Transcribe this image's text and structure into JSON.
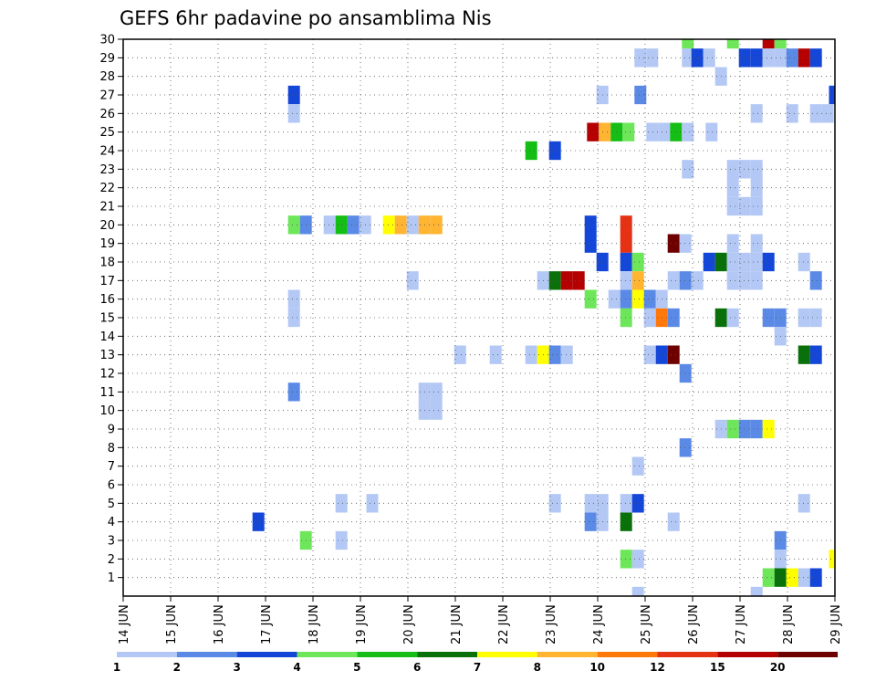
{
  "chart_data": {
    "type": "heatmap",
    "title": "GEFS 6hr padavine po ansamblima Nis",
    "xlabel": "",
    "ylabel": "",
    "x_ticks": [
      "14 JUN",
      "15 JUN",
      "16 JUN",
      "17 JUN",
      "18 JUN",
      "19 JUN",
      "20 JUN",
      "21 JUN",
      "22 JUN",
      "23 JUN",
      "24 JUN",
      "25 JUN",
      "26 JUN",
      "27 JUN",
      "28 JUN",
      "29 JUN"
    ],
    "y_ticks": [
      1,
      2,
      3,
      4,
      5,
      6,
      7,
      8,
      9,
      10,
      11,
      12,
      13,
      14,
      15,
      16,
      17,
      18,
      19,
      20,
      21,
      22,
      23,
      24,
      25,
      26,
      27,
      28,
      29,
      30
    ],
    "xlim_days": [
      14,
      29
    ],
    "ylim_members": [
      0,
      30
    ],
    "time_step_hours": 6,
    "grid": "dotted",
    "legend": {
      "placement": "bottom",
      "labels": [
        "1",
        "2",
        "3",
        "4",
        "5",
        "6",
        "7",
        "8",
        "10",
        "12",
        "15",
        "20"
      ],
      "colors": [
        "#b4c8f5",
        "#5a8ae6",
        "#1446d7",
        "#6ee65a",
        "#14be14",
        "#0a700a",
        "#ffff00",
        "#ffb432",
        "#ff780a",
        "#e63214",
        "#b40000",
        "#6e0000"
      ]
    },
    "cells": [
      {
        "m": 30,
        "d": 25.9,
        "c": 4
      },
      {
        "m": 30,
        "d": 26.85,
        "c": 4
      },
      {
        "m": 30,
        "d": 27.6,
        "c": 11
      },
      {
        "m": 30,
        "d": 27.85,
        "c": 4
      },
      {
        "m": 29,
        "d": 24.9,
        "c": 1
      },
      {
        "m": 29,
        "d": 25.15,
        "c": 1
      },
      {
        "m": 29,
        "d": 25.9,
        "c": 1
      },
      {
        "m": 29,
        "d": 26.1,
        "c": 3
      },
      {
        "m": 29,
        "d": 26.35,
        "c": 1
      },
      {
        "m": 29,
        "d": 27.1,
        "c": 3
      },
      {
        "m": 29,
        "d": 27.35,
        "c": 3
      },
      {
        "m": 29,
        "d": 27.6,
        "c": 1
      },
      {
        "m": 29,
        "d": 27.85,
        "c": 1
      },
      {
        "m": 29,
        "d": 28.1,
        "c": 2
      },
      {
        "m": 29,
        "d": 28.35,
        "c": 11
      },
      {
        "m": 29,
        "d": 28.6,
        "c": 3
      },
      {
        "m": 28,
        "d": 26.6,
        "c": 1
      },
      {
        "m": 27,
        "d": 17.6,
        "c": 3
      },
      {
        "m": 27,
        "d": 24.1,
        "c": 1
      },
      {
        "m": 27,
        "d": 24.9,
        "c": 2
      },
      {
        "m": 27,
        "d": 29.0,
        "c": 3
      },
      {
        "m": 26,
        "d": 17.6,
        "c": 1
      },
      {
        "m": 26,
        "d": 27.35,
        "c": 1
      },
      {
        "m": 26,
        "d": 28.1,
        "c": 1
      },
      {
        "m": 26,
        "d": 28.6,
        "c": 1
      },
      {
        "m": 26,
        "d": 28.85,
        "c": 1
      },
      {
        "m": 25,
        "d": 23.9,
        "c": 11
      },
      {
        "m": 25,
        "d": 24.15,
        "c": 8
      },
      {
        "m": 25,
        "d": 24.4,
        "c": 5
      },
      {
        "m": 25,
        "d": 24.65,
        "c": 4
      },
      {
        "m": 25,
        "d": 25.15,
        "c": 1
      },
      {
        "m": 25,
        "d": 25.4,
        "c": 1
      },
      {
        "m": 25,
        "d": 25.65,
        "c": 5
      },
      {
        "m": 25,
        "d": 25.9,
        "c": 1
      },
      {
        "m": 25,
        "d": 26.4,
        "c": 1
      },
      {
        "m": 24,
        "d": 22.6,
        "c": 5
      },
      {
        "m": 24,
        "d": 23.1,
        "c": 3
      },
      {
        "m": 23,
        "d": 25.9,
        "c": 1
      },
      {
        "m": 23,
        "d": 26.85,
        "c": 1
      },
      {
        "m": 23,
        "d": 27.1,
        "c": 1
      },
      {
        "m": 23,
        "d": 27.35,
        "c": 1
      },
      {
        "m": 22,
        "d": 26.85,
        "c": 1
      },
      {
        "m": 22,
        "d": 27.35,
        "c": 1
      },
      {
        "m": 21,
        "d": 26.85,
        "c": 1
      },
      {
        "m": 21,
        "d": 27.1,
        "c": 1
      },
      {
        "m": 21,
        "d": 27.35,
        "c": 1
      },
      {
        "m": 20,
        "d": 17.6,
        "c": 4
      },
      {
        "m": 20,
        "d": 17.85,
        "c": 2
      },
      {
        "m": 20,
        "d": 18.35,
        "c": 1
      },
      {
        "m": 20,
        "d": 18.6,
        "c": 5
      },
      {
        "m": 20,
        "d": 18.85,
        "c": 2
      },
      {
        "m": 20,
        "d": 19.1,
        "c": 1
      },
      {
        "m": 20,
        "d": 19.6,
        "c": 7
      },
      {
        "m": 20,
        "d": 19.85,
        "c": 8
      },
      {
        "m": 20,
        "d": 20.1,
        "c": 1
      },
      {
        "m": 20,
        "d": 20.35,
        "c": 8
      },
      {
        "m": 20,
        "d": 20.6,
        "c": 8
      },
      {
        "m": 20,
        "d": 23.85,
        "c": 3
      },
      {
        "m": 20,
        "d": 24.6,
        "c": 10
      },
      {
        "m": 19,
        "d": 23.85,
        "c": 3
      },
      {
        "m": 19,
        "d": 24.6,
        "c": 10
      },
      {
        "m": 19,
        "d": 25.6,
        "c": 12
      },
      {
        "m": 19,
        "d": 25.85,
        "c": 1
      },
      {
        "m": 19,
        "d": 26.85,
        "c": 1
      },
      {
        "m": 19,
        "d": 27.35,
        "c": 1
      },
      {
        "m": 18,
        "d": 24.1,
        "c": 3
      },
      {
        "m": 18,
        "d": 24.6,
        "c": 3
      },
      {
        "m": 18,
        "d": 24.85,
        "c": 4
      },
      {
        "m": 18,
        "d": 26.35,
        "c": 3
      },
      {
        "m": 18,
        "d": 26.6,
        "c": 6
      },
      {
        "m": 18,
        "d": 26.85,
        "c": 1
      },
      {
        "m": 18,
        "d": 27.1,
        "c": 1
      },
      {
        "m": 18,
        "d": 27.35,
        "c": 1
      },
      {
        "m": 18,
        "d": 27.6,
        "c": 3
      },
      {
        "m": 18,
        "d": 28.35,
        "c": 1
      },
      {
        "m": 17,
        "d": 20.1,
        "c": 1
      },
      {
        "m": 17,
        "d": 22.85,
        "c": 1
      },
      {
        "m": 17,
        "d": 23.1,
        "c": 6
      },
      {
        "m": 17,
        "d": 23.35,
        "c": 11
      },
      {
        "m": 17,
        "d": 23.6,
        "c": 11
      },
      {
        "m": 17,
        "d": 24.6,
        "c": 1
      },
      {
        "m": 17,
        "d": 24.85,
        "c": 8
      },
      {
        "m": 17,
        "d": 25.6,
        "c": 1
      },
      {
        "m": 17,
        "d": 25.85,
        "c": 2
      },
      {
        "m": 17,
        "d": 26.1,
        "c": 1
      },
      {
        "m": 17,
        "d": 26.85,
        "c": 1
      },
      {
        "m": 17,
        "d": 27.1,
        "c": 1
      },
      {
        "m": 17,
        "d": 27.35,
        "c": 1
      },
      {
        "m": 17,
        "d": 28.6,
        "c": 2
      },
      {
        "m": 16,
        "d": 17.6,
        "c": 1
      },
      {
        "m": 16,
        "d": 23.85,
        "c": 4
      },
      {
        "m": 16,
        "d": 24.35,
        "c": 1
      },
      {
        "m": 16,
        "d": 24.6,
        "c": 2
      },
      {
        "m": 16,
        "d": 24.85,
        "c": 7
      },
      {
        "m": 16,
        "d": 25.1,
        "c": 2
      },
      {
        "m": 16,
        "d": 25.35,
        "c": 1
      },
      {
        "m": 15,
        "d": 17.6,
        "c": 1
      },
      {
        "m": 15,
        "d": 24.6,
        "c": 4
      },
      {
        "m": 15,
        "d": 25.1,
        "c": 1
      },
      {
        "m": 15,
        "d": 25.35,
        "c": 9
      },
      {
        "m": 15,
        "d": 25.6,
        "c": 2
      },
      {
        "m": 15,
        "d": 26.6,
        "c": 6
      },
      {
        "m": 15,
        "d": 26.85,
        "c": 1
      },
      {
        "m": 15,
        "d": 27.6,
        "c": 2
      },
      {
        "m": 15,
        "d": 27.85,
        "c": 2
      },
      {
        "m": 15,
        "d": 28.35,
        "c": 1
      },
      {
        "m": 15,
        "d": 28.6,
        "c": 1
      },
      {
        "m": 14,
        "d": 27.85,
        "c": 1
      },
      {
        "m": 13,
        "d": 21.1,
        "c": 1
      },
      {
        "m": 13,
        "d": 21.85,
        "c": 1
      },
      {
        "m": 13,
        "d": 22.6,
        "c": 1
      },
      {
        "m": 13,
        "d": 22.85,
        "c": 7
      },
      {
        "m": 13,
        "d": 23.1,
        "c": 2
      },
      {
        "m": 13,
        "d": 23.35,
        "c": 1
      },
      {
        "m": 13,
        "d": 25.1,
        "c": 1
      },
      {
        "m": 13,
        "d": 25.35,
        "c": 3
      },
      {
        "m": 13,
        "d": 25.6,
        "c": 12
      },
      {
        "m": 13,
        "d": 28.35,
        "c": 6
      },
      {
        "m": 13,
        "d": 28.6,
        "c": 3
      },
      {
        "m": 12,
        "d": 25.85,
        "c": 2
      },
      {
        "m": 11,
        "d": 17.6,
        "c": 2
      },
      {
        "m": 11,
        "d": 20.35,
        "c": 1
      },
      {
        "m": 11,
        "d": 20.6,
        "c": 1
      },
      {
        "m": 10,
        "d": 20.35,
        "c": 1
      },
      {
        "m": 10,
        "d": 20.6,
        "c": 1
      },
      {
        "m": 9,
        "d": 26.6,
        "c": 1
      },
      {
        "m": 9,
        "d": 26.85,
        "c": 4
      },
      {
        "m": 9,
        "d": 27.1,
        "c": 2
      },
      {
        "m": 9,
        "d": 27.35,
        "c": 2
      },
      {
        "m": 9,
        "d": 27.6,
        "c": 7
      },
      {
        "m": 8,
        "d": 25.85,
        "c": 2
      },
      {
        "m": 7,
        "d": 24.85,
        "c": 1
      },
      {
        "m": 5,
        "d": 18.6,
        "c": 1
      },
      {
        "m": 5,
        "d": 19.25,
        "c": 1
      },
      {
        "m": 5,
        "d": 23.1,
        "c": 1
      },
      {
        "m": 5,
        "d": 23.85,
        "c": 1
      },
      {
        "m": 5,
        "d": 24.1,
        "c": 1
      },
      {
        "m": 5,
        "d": 24.6,
        "c": 1
      },
      {
        "m": 5,
        "d": 24.85,
        "c": 3
      },
      {
        "m": 5,
        "d": 28.35,
        "c": 1
      },
      {
        "m": 4,
        "d": 16.85,
        "c": 3
      },
      {
        "m": 4,
        "d": 23.85,
        "c": 2
      },
      {
        "m": 4,
        "d": 24.1,
        "c": 1
      },
      {
        "m": 4,
        "d": 24.6,
        "c": 6
      },
      {
        "m": 4,
        "d": 25.6,
        "c": 1
      },
      {
        "m": 3,
        "d": 17.85,
        "c": 4
      },
      {
        "m": 3,
        "d": 18.6,
        "c": 1
      },
      {
        "m": 3,
        "d": 27.85,
        "c": 2
      },
      {
        "m": 2,
        "d": 24.6,
        "c": 4
      },
      {
        "m": 2,
        "d": 24.85,
        "c": 1
      },
      {
        "m": 2,
        "d": 27.85,
        "c": 1
      },
      {
        "m": 2,
        "d": 29.0,
        "c": 7
      },
      {
        "m": 1,
        "d": 27.6,
        "c": 4
      },
      {
        "m": 1,
        "d": 27.85,
        "c": 6
      },
      {
        "m": 1,
        "d": 28.1,
        "c": 7
      },
      {
        "m": 1,
        "d": 28.35,
        "c": 1
      },
      {
        "m": 1,
        "d": 28.6,
        "c": 3
      },
      {
        "m": 0,
        "d": 24.85,
        "c": 1
      },
      {
        "m": 0,
        "d": 27.35,
        "c": 1
      }
    ]
  }
}
